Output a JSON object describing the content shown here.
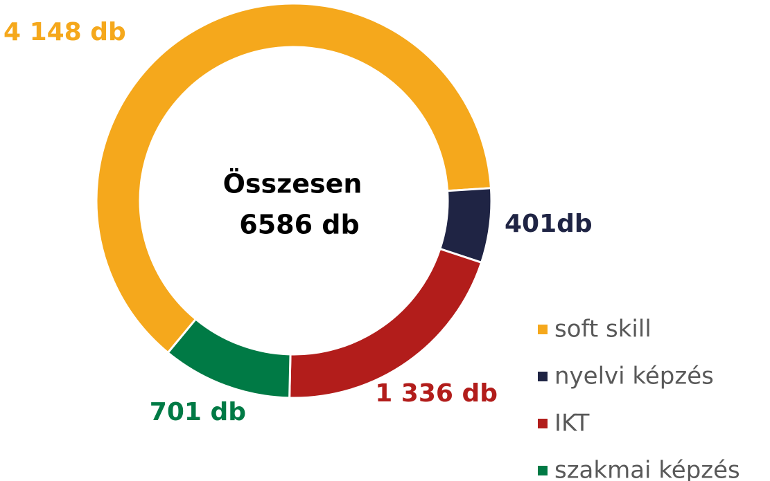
{
  "chart_data": {
    "type": "donut",
    "categories": [
      "soft skill",
      "nyelvi képzés",
      "IKT",
      "szakmai képzés"
    ],
    "values": [
      4148,
      401,
      1336,
      701
    ],
    "value_labels": [
      "4 148 db",
      "401db",
      "1 336 db",
      "701 db"
    ],
    "colors": [
      "#f5a81c",
      "#1f2444",
      "#b21d1b",
      "#007a45"
    ],
    "center_text": [
      "Összesen",
      "6586 db"
    ],
    "legend": "bottom-right"
  }
}
